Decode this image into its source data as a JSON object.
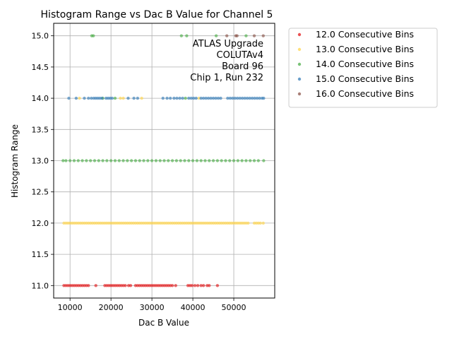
{
  "chart_data": {
    "type": "scatter",
    "title": "Histogram Range vs Dac B Value for Channel 5",
    "xlabel": "Dac B Value",
    "ylabel": "Histogram Range",
    "xlim": [
      6000,
      60000
    ],
    "ylim": [
      10.8,
      15.2
    ],
    "xticks": [
      10000,
      20000,
      30000,
      40000,
      50000
    ],
    "yticks": [
      11.0,
      11.5,
      12.0,
      12.5,
      13.0,
      13.5,
      14.0,
      14.5,
      15.0
    ],
    "grid": true,
    "legend_placement": "outside-right",
    "annotation": [
      "ATLAS Upgrade",
      "COLUTAv4",
      "Board 96",
      "Chip 1, Run 232"
    ],
    "series": [
      {
        "name": "12.0 Consecutive Bins",
        "color": "#e41a1c",
        "points": [
          [
            8500,
            11
          ],
          [
            9000,
            11
          ],
          [
            9500,
            11
          ],
          [
            10000,
            11
          ],
          [
            10500,
            11
          ],
          [
            11000,
            11
          ],
          [
            11500,
            11
          ],
          [
            12000,
            11
          ],
          [
            12500,
            11
          ],
          [
            13000,
            11
          ],
          [
            13500,
            11
          ],
          [
            14000,
            11
          ],
          [
            14500,
            11
          ],
          [
            16300,
            11
          ],
          [
            18500,
            11
          ],
          [
            19000,
            11
          ],
          [
            19500,
            11
          ],
          [
            20000,
            11
          ],
          [
            20500,
            11
          ],
          [
            21000,
            11
          ],
          [
            21500,
            11
          ],
          [
            22000,
            11
          ],
          [
            22500,
            11
          ],
          [
            23000,
            11
          ],
          [
            23500,
            11
          ],
          [
            24300,
            11
          ],
          [
            24800,
            11
          ],
          [
            26000,
            11
          ],
          [
            26500,
            11
          ],
          [
            27000,
            11
          ],
          [
            27500,
            11
          ],
          [
            28000,
            11
          ],
          [
            28500,
            11
          ],
          [
            29000,
            11
          ],
          [
            29500,
            11
          ],
          [
            30000,
            11
          ],
          [
            30500,
            11
          ],
          [
            31000,
            11
          ],
          [
            31500,
            11
          ],
          [
            32000,
            11
          ],
          [
            32500,
            11
          ],
          [
            33000,
            11
          ],
          [
            33500,
            11
          ],
          [
            34000,
            11
          ],
          [
            34500,
            11
          ],
          [
            35000,
            11
          ],
          [
            35800,
            11
          ],
          [
            38800,
            11
          ],
          [
            39300,
            11
          ],
          [
            39800,
            11
          ],
          [
            40500,
            11
          ],
          [
            41200,
            11
          ],
          [
            42000,
            11
          ],
          [
            42600,
            11
          ],
          [
            43500,
            11
          ],
          [
            44000,
            11
          ],
          [
            46000,
            11
          ]
        ]
      },
      {
        "name": "13.0 Consecutive Bins",
        "color": "#ffd54f",
        "points": [
          [
            8500,
            12
          ],
          [
            9000,
            12
          ],
          [
            9500,
            12
          ],
          [
            10000,
            12
          ],
          [
            10500,
            12
          ],
          [
            11000,
            12
          ],
          [
            11500,
            12
          ],
          [
            12000,
            12
          ],
          [
            12500,
            12
          ],
          [
            13000,
            12
          ],
          [
            13500,
            12
          ],
          [
            14000,
            12
          ],
          [
            14500,
            12
          ],
          [
            15000,
            12
          ],
          [
            15500,
            12
          ],
          [
            16000,
            12
          ],
          [
            16500,
            12
          ],
          [
            17000,
            12
          ],
          [
            17500,
            12
          ],
          [
            18000,
            12
          ],
          [
            18500,
            12
          ],
          [
            19000,
            12
          ],
          [
            19500,
            12
          ],
          [
            20000,
            12
          ],
          [
            20500,
            12
          ],
          [
            21000,
            12
          ],
          [
            21500,
            12
          ],
          [
            22000,
            12
          ],
          [
            22500,
            12
          ],
          [
            23000,
            12
          ],
          [
            23500,
            12
          ],
          [
            24000,
            12
          ],
          [
            24500,
            12
          ],
          [
            25000,
            12
          ],
          [
            25500,
            12
          ],
          [
            26000,
            12
          ],
          [
            26500,
            12
          ],
          [
            27000,
            12
          ],
          [
            27500,
            12
          ],
          [
            28000,
            12
          ],
          [
            28500,
            12
          ],
          [
            29000,
            12
          ],
          [
            29500,
            12
          ],
          [
            30000,
            12
          ],
          [
            30500,
            12
          ],
          [
            31000,
            12
          ],
          [
            31500,
            12
          ],
          [
            32000,
            12
          ],
          [
            32500,
            12
          ],
          [
            33000,
            12
          ],
          [
            33500,
            12
          ],
          [
            34000,
            12
          ],
          [
            34500,
            12
          ],
          [
            35000,
            12
          ],
          [
            35500,
            12
          ],
          [
            36000,
            12
          ],
          [
            36500,
            12
          ],
          [
            37000,
            12
          ],
          [
            37500,
            12
          ],
          [
            38000,
            12
          ],
          [
            38500,
            12
          ],
          [
            39000,
            12
          ],
          [
            39500,
            12
          ],
          [
            40000,
            12
          ],
          [
            40500,
            12
          ],
          [
            41000,
            12
          ],
          [
            41500,
            12
          ],
          [
            42000,
            12
          ],
          [
            42500,
            12
          ],
          [
            43000,
            12
          ],
          [
            43500,
            12
          ],
          [
            44000,
            12
          ],
          [
            44500,
            12
          ],
          [
            45000,
            12
          ],
          [
            45500,
            12
          ],
          [
            46000,
            12
          ],
          [
            46500,
            12
          ],
          [
            47000,
            12
          ],
          [
            47500,
            12
          ],
          [
            48000,
            12
          ],
          [
            48500,
            12
          ],
          [
            49000,
            12
          ],
          [
            49500,
            12
          ],
          [
            50000,
            12
          ],
          [
            50500,
            12
          ],
          [
            51000,
            12
          ],
          [
            51500,
            12
          ],
          [
            52000,
            12
          ],
          [
            52500,
            12
          ],
          [
            53000,
            12
          ],
          [
            53500,
            12
          ],
          [
            55000,
            12
          ],
          [
            55500,
            12
          ],
          [
            56000,
            12
          ],
          [
            56500,
            12
          ],
          [
            57200,
            12
          ],
          [
            12300,
            14
          ],
          [
            22300,
            14
          ],
          [
            23000,
            14
          ],
          [
            27500,
            14
          ],
          [
            41500,
            14
          ]
        ]
      },
      {
        "name": "14.0 Consecutive Bins",
        "color": "#4daf4a",
        "points": [
          [
            8300,
            13
          ],
          [
            9000,
            13
          ],
          [
            10000,
            13
          ],
          [
            11000,
            13
          ],
          [
            12000,
            13
          ],
          [
            13000,
            13
          ],
          [
            14000,
            13
          ],
          [
            15000,
            13
          ],
          [
            16000,
            13
          ],
          [
            17000,
            13
          ],
          [
            18000,
            13
          ],
          [
            19000,
            13
          ],
          [
            20000,
            13
          ],
          [
            21000,
            13
          ],
          [
            22000,
            13
          ],
          [
            23000,
            13
          ],
          [
            24000,
            13
          ],
          [
            25000,
            13
          ],
          [
            26000,
            13
          ],
          [
            27000,
            13
          ],
          [
            28000,
            13
          ],
          [
            29000,
            13
          ],
          [
            30000,
            13
          ],
          [
            31000,
            13
          ],
          [
            32000,
            13
          ],
          [
            33000,
            13
          ],
          [
            34000,
            13
          ],
          [
            35000,
            13
          ],
          [
            36000,
            13
          ],
          [
            37000,
            13
          ],
          [
            38000,
            13
          ],
          [
            39000,
            13
          ],
          [
            40000,
            13
          ],
          [
            41000,
            13
          ],
          [
            42000,
            13
          ],
          [
            43000,
            13
          ],
          [
            44000,
            13
          ],
          [
            45000,
            13
          ],
          [
            46000,
            13
          ],
          [
            47000,
            13
          ],
          [
            48000,
            13
          ],
          [
            49000,
            13
          ],
          [
            50000,
            13
          ],
          [
            51000,
            13
          ],
          [
            52000,
            13
          ],
          [
            53000,
            13
          ],
          [
            54000,
            13
          ],
          [
            55000,
            13
          ],
          [
            56000,
            13
          ],
          [
            57300,
            13
          ],
          [
            15300,
            15
          ],
          [
            15700,
            15
          ],
          [
            37200,
            15
          ],
          [
            38500,
            15
          ],
          [
            45700,
            15
          ],
          [
            53000,
            15
          ],
          [
            18000,
            14
          ],
          [
            21000,
            14
          ],
          [
            38200,
            14
          ]
        ]
      },
      {
        "name": "15.0 Consecutive Bins",
        "color": "#377eb8",
        "points": [
          [
            9700,
            14
          ],
          [
            11500,
            14
          ],
          [
            13500,
            14
          ],
          [
            14500,
            14
          ],
          [
            15200,
            14
          ],
          [
            15800,
            14
          ],
          [
            16300,
            14
          ],
          [
            16800,
            14
          ],
          [
            17300,
            14
          ],
          [
            17800,
            14
          ],
          [
            18800,
            14
          ],
          [
            19300,
            14
          ],
          [
            19800,
            14
          ],
          [
            20300,
            14
          ],
          [
            24200,
            14
          ],
          [
            25600,
            14
          ],
          [
            26500,
            14
          ],
          [
            32700,
            14
          ],
          [
            33700,
            14
          ],
          [
            34500,
            14
          ],
          [
            35400,
            14
          ],
          [
            36100,
            14
          ],
          [
            36800,
            14
          ],
          [
            37500,
            14
          ],
          [
            39000,
            14
          ],
          [
            39600,
            14
          ],
          [
            40200,
            14
          ],
          [
            40800,
            14
          ],
          [
            42000,
            14
          ],
          [
            42600,
            14
          ],
          [
            43200,
            14
          ],
          [
            43800,
            14
          ],
          [
            44400,
            14
          ],
          [
            45000,
            14
          ],
          [
            45600,
            14
          ],
          [
            46200,
            14
          ],
          [
            46800,
            14
          ],
          [
            48500,
            14
          ],
          [
            49100,
            14
          ],
          [
            49700,
            14
          ],
          [
            50300,
            14
          ],
          [
            50900,
            14
          ],
          [
            51500,
            14
          ],
          [
            52100,
            14
          ],
          [
            52700,
            14
          ],
          [
            53300,
            14
          ],
          [
            53900,
            14
          ],
          [
            54500,
            14
          ],
          [
            55100,
            14
          ],
          [
            55700,
            14
          ],
          [
            56300,
            14
          ],
          [
            56900,
            14
          ],
          [
            57300,
            14
          ]
        ]
      },
      {
        "name": "16.0 Consecutive Bins",
        "color": "#8c564b",
        "points": [
          [
            48300,
            15
          ],
          [
            50500,
            15
          ],
          [
            50800,
            15
          ],
          [
            55000,
            15
          ],
          [
            57200,
            15
          ]
        ]
      }
    ]
  }
}
